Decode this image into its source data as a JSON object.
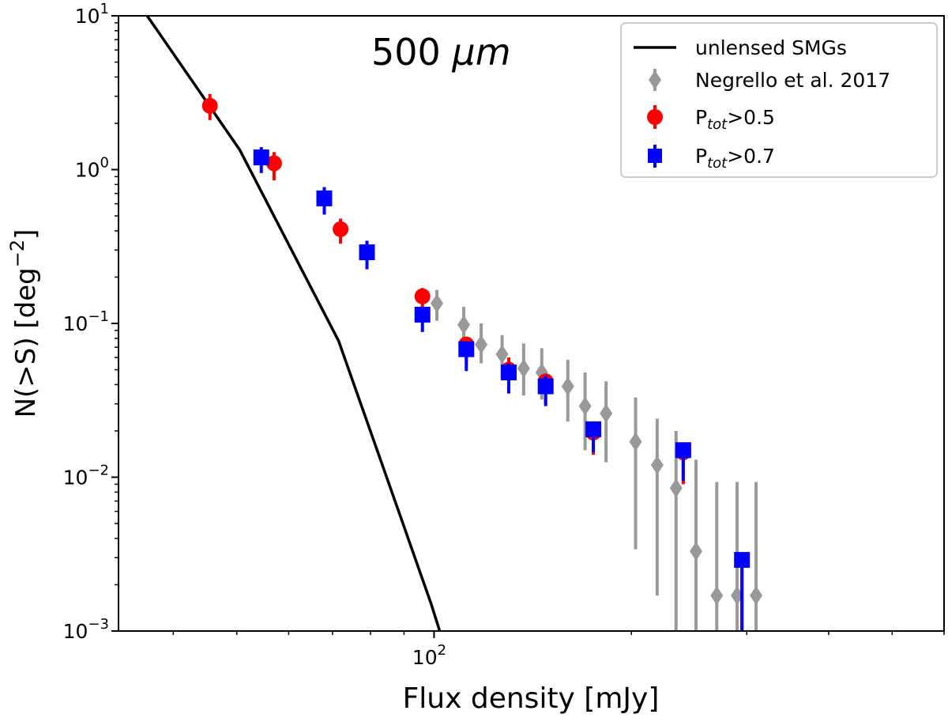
{
  "chart_data": {
    "type": "scatter",
    "title": "500 μm",
    "title_plain": "500 ",
    "title_unit": "μm",
    "xlabel": "Flux density [mJy]",
    "ylabel": "N(>S) [deg⁻²]",
    "ylabel_main": "N(>S) [deg",
    "ylabel_sup": "−2",
    "ylabel_end": "]",
    "xscale": "log",
    "yscale": "log",
    "xlim": [
      33,
      600
    ],
    "ylim": [
      0.001,
      10
    ],
    "xticks_major": [
      {
        "value": 100,
        "base": "10",
        "exp": "2"
      }
    ],
    "yticks_major": [
      {
        "value": 0.001,
        "base": "10",
        "exp": "−3"
      },
      {
        "value": 0.01,
        "base": "10",
        "exp": "−2"
      },
      {
        "value": 0.1,
        "base": "10",
        "exp": "−1"
      },
      {
        "value": 1,
        "base": "10",
        "exp": "0"
      },
      {
        "value": 10,
        "base": "10",
        "exp": "1"
      }
    ],
    "legend_position": "top-right",
    "series": [
      {
        "name": "unlensed SMGs",
        "kind": "line",
        "color": "#000000",
        "x": [
          36.5,
          50.5,
          71.5,
          84.0,
          99.0,
          102.0
        ],
        "y": [
          10,
          1.35,
          0.077,
          0.011,
          0.0015,
          0.001
        ]
      },
      {
        "name": "Negrello et al. 2017",
        "kind": "diamond",
        "color": "#999999",
        "x": [
          101,
          111,
          118,
          127,
          137,
          146,
          160,
          170,
          183,
          203,
          219,
          234,
          251,
          270,
          290,
          310
        ],
        "y": [
          0.135,
          0.098,
          0.073,
          0.063,
          0.051,
          0.048,
          0.039,
          0.029,
          0.026,
          0.017,
          0.012,
          0.0085,
          0.0033,
          0.0017,
          0.0017,
          0.0017
        ],
        "yerr_low": [
          0.104,
          0.075,
          0.055,
          0.044,
          0.034,
          0.032,
          0.023,
          0.015,
          0.0125,
          0.0034,
          0.0017,
          0.001,
          0.001,
          0.001,
          0.001,
          0.001
        ],
        "yerr_high": [
          0.165,
          0.128,
          0.1,
          0.084,
          0.074,
          0.069,
          0.058,
          0.048,
          0.042,
          0.033,
          0.024,
          0.02,
          0.013,
          0.0093,
          0.0093,
          0.0093
        ]
      },
      {
        "name": "P_tot>0.5",
        "label_main": "P",
        "label_sub": "tot",
        "label_tail": ">0.5",
        "kind": "circle",
        "color": "#ff0000",
        "x": [
          45.5,
          57.0,
          72.0,
          96.0,
          112.0,
          130.0,
          148.0,
          175.0,
          240.0,
          295.0
        ],
        "y": [
          2.6,
          1.1,
          0.41,
          0.15,
          0.073,
          0.05,
          0.042,
          0.0195,
          0.0145,
          0.0029
        ],
        "yerr_low": [
          2.1,
          0.85,
          0.33,
          0.12,
          0.055,
          0.036,
          0.03,
          0.014,
          0.009,
          0.001
        ],
        "yerr_high": [
          3.1,
          1.3,
          0.48,
          0.17,
          0.082,
          0.06,
          0.045,
          0.022,
          0.0165,
          0.0031
        ]
      },
      {
        "name": "P_tot>0.7",
        "label_main": "P",
        "label_sub": "tot",
        "label_tail": ">0.7",
        "kind": "square",
        "color": "#0000ff",
        "x": [
          54.5,
          68.0,
          79.0,
          96.0,
          112.0,
          130.0,
          148.0,
          175.0,
          240.0,
          295.0
        ],
        "y": [
          1.2,
          0.65,
          0.29,
          0.114,
          0.068,
          0.048,
          0.039,
          0.0205,
          0.015,
          0.0029
        ],
        "yerr_low": [
          0.95,
          0.51,
          0.225,
          0.088,
          0.049,
          0.035,
          0.029,
          0.0145,
          0.0095,
          0.001
        ],
        "yerr_high": [
          1.4,
          0.77,
          0.345,
          0.125,
          0.075,
          0.055,
          0.046,
          0.022,
          0.0155,
          0.003
        ]
      }
    ]
  }
}
